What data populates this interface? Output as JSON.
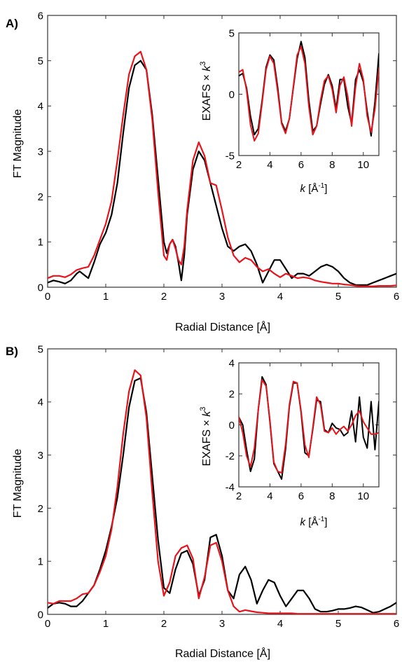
{
  "panels": [
    {
      "letter": "A)",
      "main": {
        "type": "line",
        "xlabel": "Radial Distance [Å]",
        "ylabel": "FT Magnitude",
        "xlim": [
          0,
          6
        ],
        "ylim": [
          0,
          6
        ],
        "xticks": [
          "0",
          "1",
          "2",
          "3",
          "4",
          "5",
          "6"
        ],
        "yticks": [
          "0",
          "1",
          "2",
          "3",
          "4",
          "5",
          "6"
        ]
      },
      "inset": {
        "type": "line",
        "xlabel_k": "k",
        "xlabel_unit": " [Å",
        "xlabel_exp": "-1",
        "xlabel_close": "]",
        "ylabel_text": "EXAFS × ",
        "ylabel_k": "k",
        "ylabel_exp": "3",
        "xlim": [
          2,
          11
        ],
        "ylim": [
          -5,
          5
        ],
        "xticks": [
          "2",
          "4",
          "6",
          "8",
          "10"
        ],
        "yticks": [
          "-5",
          "0",
          "5"
        ]
      }
    },
    {
      "letter": "B)",
      "main": {
        "type": "line",
        "xlabel": "Radial Distance [Å]",
        "ylabel": "FT Magnitude",
        "xlim": [
          0,
          6
        ],
        "ylim": [
          0,
          5
        ],
        "xticks": [
          "0",
          "1",
          "2",
          "3",
          "4",
          "5",
          "6"
        ],
        "yticks": [
          "0",
          "1",
          "2",
          "3",
          "4",
          "5"
        ]
      },
      "inset": {
        "type": "line",
        "xlabel_k": "k",
        "xlabel_unit": " [Å",
        "xlabel_exp": "-1",
        "xlabel_close": "]",
        "ylabel_text": "EXAFS × ",
        "ylabel_k": "k",
        "ylabel_exp": "3",
        "xlim": [
          2,
          11
        ],
        "ylim": [
          -4,
          4
        ],
        "xticks": [
          "2",
          "4",
          "6",
          "8",
          "10"
        ],
        "yticks": [
          "-4",
          "-2",
          "0",
          "2",
          "4"
        ]
      }
    }
  ],
  "colors": {
    "series_black": "#000000",
    "series_red": "#e8141c",
    "axis": "#333333"
  },
  "chart_data": [
    {
      "type": "line",
      "panel": "A",
      "xlabel": "Radial Distance [Å]",
      "ylabel": "FT Magnitude",
      "xlim": [
        0,
        6
      ],
      "ylim": [
        0,
        6
      ],
      "series": [
        {
          "color": "#000000",
          "x": [
            0,
            0.1,
            0.2,
            0.3,
            0.4,
            0.5,
            0.55,
            0.6,
            0.7,
            0.8,
            0.9,
            1.0,
            1.1,
            1.2,
            1.3,
            1.4,
            1.5,
            1.6,
            1.7,
            1.8,
            1.9,
            2.0,
            2.05,
            2.1,
            2.15,
            2.2,
            2.25,
            2.3,
            2.35,
            2.4,
            2.5,
            2.6,
            2.7,
            2.8,
            2.9,
            3.0,
            3.1,
            3.2,
            3.3,
            3.4,
            3.5,
            3.6,
            3.7,
            3.8,
            3.9,
            4.0,
            4.1,
            4.2,
            4.3,
            4.4,
            4.5,
            4.6,
            4.7,
            4.8,
            4.9,
            5.0,
            5.1,
            5.2,
            5.3,
            5.4,
            5.5,
            5.6,
            5.7,
            5.8,
            5.9,
            6.0
          ],
          "y": [
            0.1,
            0.15,
            0.12,
            0.08,
            0.15,
            0.3,
            0.35,
            0.3,
            0.2,
            0.55,
            0.95,
            1.2,
            1.6,
            2.3,
            3.4,
            4.4,
            4.9,
            5.0,
            4.8,
            3.8,
            2.4,
            1.0,
            0.75,
            0.95,
            1.05,
            0.9,
            0.55,
            0.15,
            0.7,
            1.6,
            2.6,
            3.0,
            2.8,
            2.3,
            1.8,
            1.3,
            0.9,
            0.8,
            0.9,
            0.95,
            0.8,
            0.5,
            0.1,
            0.35,
            0.6,
            0.6,
            0.4,
            0.2,
            0.3,
            0.3,
            0.25,
            0.35,
            0.45,
            0.5,
            0.45,
            0.35,
            0.2,
            0.1,
            0.05,
            0.05,
            0.05,
            0.1,
            0.15,
            0.2,
            0.25,
            0.3
          ]
        },
        {
          "color": "#e8141c",
          "x": [
            0,
            0.1,
            0.2,
            0.3,
            0.4,
            0.5,
            0.6,
            0.7,
            0.8,
            0.9,
            1.0,
            1.1,
            1.2,
            1.3,
            1.4,
            1.5,
            1.6,
            1.7,
            1.8,
            1.9,
            2.0,
            2.05,
            2.1,
            2.15,
            2.2,
            2.25,
            2.3,
            2.35,
            2.4,
            2.5,
            2.6,
            2.7,
            2.8,
            2.9,
            3.0,
            3.1,
            3.2,
            3.3,
            3.4,
            3.5,
            3.6,
            3.7,
            3.8,
            3.9,
            4.0,
            4.1,
            4.2,
            4.3,
            4.4,
            4.5,
            4.6,
            4.7,
            4.8,
            4.9,
            5.0,
            5.1,
            5.2,
            5.3,
            5.4,
            5.5,
            5.6,
            5.7,
            5.8,
            5.9,
            6.0
          ],
          "y": [
            0.2,
            0.25,
            0.25,
            0.22,
            0.28,
            0.38,
            0.42,
            0.45,
            0.7,
            1.05,
            1.4,
            1.9,
            2.8,
            3.8,
            4.7,
            5.1,
            5.2,
            4.8,
            3.7,
            2.1,
            0.7,
            0.6,
            0.95,
            1.05,
            0.85,
            0.6,
            0.5,
            0.9,
            1.7,
            2.8,
            3.2,
            2.9,
            2.3,
            2.25,
            1.7,
            1.1,
            0.7,
            0.55,
            0.65,
            0.6,
            0.45,
            0.35,
            0.4,
            0.3,
            0.22,
            0.3,
            0.25,
            0.2,
            0.22,
            0.2,
            0.15,
            0.12,
            0.1,
            0.08,
            0.08,
            0.06,
            0.05,
            0.03,
            0.02,
            0.02,
            0.02,
            0.03,
            0.03,
            0.03,
            0.04
          ]
        }
      ]
    },
    {
      "type": "line",
      "panel": "A-inset",
      "xlabel": "k [Å-1]",
      "ylabel": "EXAFS × k3",
      "xlim": [
        2,
        11
      ],
      "ylim": [
        -5,
        5
      ],
      "series": [
        {
          "color": "#000000",
          "x": [
            2.0,
            2.25,
            2.5,
            2.75,
            3.0,
            3.25,
            3.5,
            3.75,
            4.0,
            4.25,
            4.5,
            4.75,
            5.0,
            5.25,
            5.5,
            5.75,
            6.0,
            6.25,
            6.5,
            6.75,
            7.0,
            7.25,
            7.5,
            7.75,
            8.0,
            8.25,
            8.5,
            8.75,
            9.0,
            9.25,
            9.5,
            9.75,
            10.0,
            10.25,
            10.5,
            10.75,
            11.0
          ],
          "y": [
            1.5,
            1.7,
            0.5,
            -1.8,
            -3.3,
            -2.8,
            -0.5,
            2.2,
            3.2,
            2.8,
            0.5,
            -2.3,
            -3.0,
            -2.0,
            0.5,
            2.9,
            4.3,
            3.0,
            -0.5,
            -3.0,
            -2.6,
            -0.8,
            0.8,
            1.6,
            0.7,
            -1.2,
            1.2,
            1.2,
            -1.0,
            -2.4,
            1.2,
            2.0,
            1.0,
            -1.4,
            -3.4,
            -0.6,
            3.3
          ]
        },
        {
          "color": "#e8141c",
          "x": [
            2.0,
            2.25,
            2.5,
            2.75,
            3.0,
            3.25,
            3.5,
            3.75,
            4.0,
            4.25,
            4.5,
            4.75,
            5.0,
            5.25,
            5.5,
            5.75,
            6.0,
            6.25,
            6.5,
            6.75,
            7.0,
            7.25,
            7.5,
            7.75,
            8.0,
            8.25,
            8.5,
            8.75,
            9.0,
            9.25,
            9.5,
            9.75,
            10.0,
            10.25,
            10.5,
            10.75,
            11.0
          ],
          "y": [
            1.8,
            2.0,
            0.3,
            -2.5,
            -3.8,
            -3.2,
            -0.7,
            2.0,
            3.1,
            2.5,
            0.2,
            -2.4,
            -3.2,
            -2.0,
            0.6,
            3.2,
            3.9,
            2.5,
            -1.0,
            -3.3,
            -2.6,
            -0.5,
            1.1,
            1.5,
            0.4,
            -1.5,
            0.7,
            1.4,
            -0.2,
            -2.6,
            0.6,
            2.5,
            1.2,
            -1.8,
            -3.1,
            -1.2,
            2.1
          ]
        }
      ]
    },
    {
      "type": "line",
      "panel": "B",
      "xlabel": "Radial Distance [Å]",
      "ylabel": "FT Magnitude",
      "xlim": [
        0,
        6
      ],
      "ylim": [
        0,
        5
      ],
      "series": [
        {
          "color": "#000000",
          "x": [
            0,
            0.1,
            0.2,
            0.3,
            0.4,
            0.5,
            0.6,
            0.7,
            0.8,
            0.9,
            1.0,
            1.1,
            1.2,
            1.3,
            1.4,
            1.5,
            1.6,
            1.7,
            1.8,
            1.9,
            2.0,
            2.1,
            2.2,
            2.3,
            2.4,
            2.5,
            2.6,
            2.7,
            2.8,
            2.9,
            3.0,
            3.1,
            3.2,
            3.3,
            3.4,
            3.5,
            3.6,
            3.7,
            3.8,
            3.9,
            4.0,
            4.1,
            4.2,
            4.3,
            4.4,
            4.5,
            4.6,
            4.7,
            4.8,
            4.9,
            5.0,
            5.1,
            5.2,
            5.3,
            5.4,
            5.5,
            5.6,
            5.7,
            5.8,
            5.9,
            6.0
          ],
          "y": [
            0.12,
            0.2,
            0.22,
            0.2,
            0.15,
            0.15,
            0.25,
            0.4,
            0.55,
            0.85,
            1.2,
            1.65,
            2.2,
            3.0,
            3.9,
            4.4,
            4.45,
            3.8,
            2.6,
            1.4,
            0.5,
            0.4,
            0.85,
            1.15,
            1.2,
            0.95,
            0.35,
            0.65,
            1.45,
            1.5,
            1.1,
            0.45,
            0.3,
            0.75,
            0.9,
            0.65,
            0.2,
            0.45,
            0.65,
            0.6,
            0.35,
            0.15,
            0.3,
            0.45,
            0.45,
            0.3,
            0.1,
            0.05,
            0.05,
            0.07,
            0.1,
            0.1,
            0.12,
            0.15,
            0.13,
            0.08,
            0.03,
            0.05,
            0.1,
            0.15,
            0.22
          ]
        },
        {
          "color": "#e8141c",
          "x": [
            0,
            0.1,
            0.2,
            0.3,
            0.4,
            0.5,
            0.6,
            0.7,
            0.8,
            0.9,
            1.0,
            1.1,
            1.2,
            1.3,
            1.4,
            1.5,
            1.6,
            1.7,
            1.8,
            1.9,
            2.0,
            2.1,
            2.2,
            2.3,
            2.4,
            2.5,
            2.6,
            2.7,
            2.8,
            2.9,
            3.0,
            3.1,
            3.2,
            3.3,
            3.4,
            3.5,
            3.6,
            3.7,
            3.8,
            3.9,
            4.0,
            4.1,
            4.2,
            4.3,
            4.4,
            4.5,
            4.6,
            4.7,
            4.8,
            4.9,
            5.0,
            5.1,
            5.2,
            5.3,
            5.4,
            5.5,
            5.6,
            5.7,
            5.8,
            5.9,
            6.0
          ],
          "y": [
            0.22,
            0.2,
            0.25,
            0.25,
            0.25,
            0.3,
            0.38,
            0.4,
            0.55,
            0.8,
            1.1,
            1.6,
            2.4,
            3.4,
            4.2,
            4.6,
            4.5,
            3.7,
            2.3,
            1.0,
            0.35,
            0.6,
            1.1,
            1.25,
            1.3,
            1.05,
            0.3,
            0.7,
            1.3,
            1.35,
            1.0,
            0.45,
            0.15,
            0.05,
            0.08,
            0.06,
            0.04,
            0.03,
            0.02,
            0.02,
            0.02,
            0.02,
            0.02,
            0.01,
            0.01,
            0.01,
            0.01,
            0.01,
            0.01,
            0.01,
            0.01,
            0.01,
            0.01,
            0.01,
            0.01,
            0.01,
            0.01,
            0.01,
            0.01,
            0.01,
            0.01
          ]
        }
      ]
    },
    {
      "type": "line",
      "panel": "B-inset",
      "xlabel": "k [Å-1]",
      "ylabel": "EXAFS × k3",
      "xlim": [
        2,
        11
      ],
      "ylim": [
        -4,
        4
      ],
      "series": [
        {
          "color": "#000000",
          "x": [
            2.0,
            2.25,
            2.5,
            2.75,
            3.0,
            3.25,
            3.5,
            3.75,
            4.0,
            4.25,
            4.5,
            4.75,
            5.0,
            5.25,
            5.5,
            5.75,
            6.0,
            6.25,
            6.5,
            6.75,
            7.0,
            7.25,
            7.5,
            7.75,
            8.0,
            8.25,
            8.5,
            8.75,
            9.0,
            9.25,
            9.5,
            9.75,
            10.0,
            10.25,
            10.5,
            10.75,
            11.0
          ],
          "y": [
            0.5,
            0.0,
            -1.6,
            -3.0,
            -2.2,
            1.0,
            3.1,
            2.6,
            0.2,
            -2.5,
            -3.0,
            -3.5,
            -1.6,
            1.2,
            2.7,
            2.7,
            0.8,
            -1.8,
            -2.0,
            -0.3,
            1.6,
            1.5,
            -0.3,
            -0.5,
            0.1,
            -0.2,
            -0.3,
            -0.7,
            -0.5,
            0.9,
            -1.1,
            1.8,
            -0.8,
            -1.5,
            1.5,
            -1.6,
            1.5
          ]
        },
        {
          "color": "#e8141c",
          "x": [
            2.0,
            2.25,
            2.5,
            2.75,
            3.0,
            3.25,
            3.5,
            3.75,
            4.0,
            4.25,
            4.5,
            4.75,
            5.0,
            5.25,
            5.5,
            5.75,
            6.0,
            6.25,
            6.5,
            6.75,
            7.0,
            7.25,
            7.5,
            7.75,
            8.0,
            8.25,
            8.5,
            8.75,
            9.0,
            9.25,
            9.5,
            9.75,
            10.0,
            10.25,
            10.5,
            10.75,
            11.0
          ],
          "y": [
            0.5,
            -0.5,
            -2.0,
            -2.7,
            -1.5,
            1.0,
            2.9,
            2.5,
            0.3,
            -2.4,
            -3.0,
            -3.1,
            -1.3,
            1.3,
            2.8,
            2.7,
            0.9,
            -1.3,
            -2.1,
            -0.2,
            1.8,
            1.3,
            -0.4,
            -0.5,
            -0.2,
            -0.6,
            -0.3,
            -0.1,
            -0.4,
            0.0,
            0.6,
            0.9,
            0.2,
            -0.2,
            -0.6,
            -0.6,
            -0.5
          ]
        }
      ]
    }
  ]
}
